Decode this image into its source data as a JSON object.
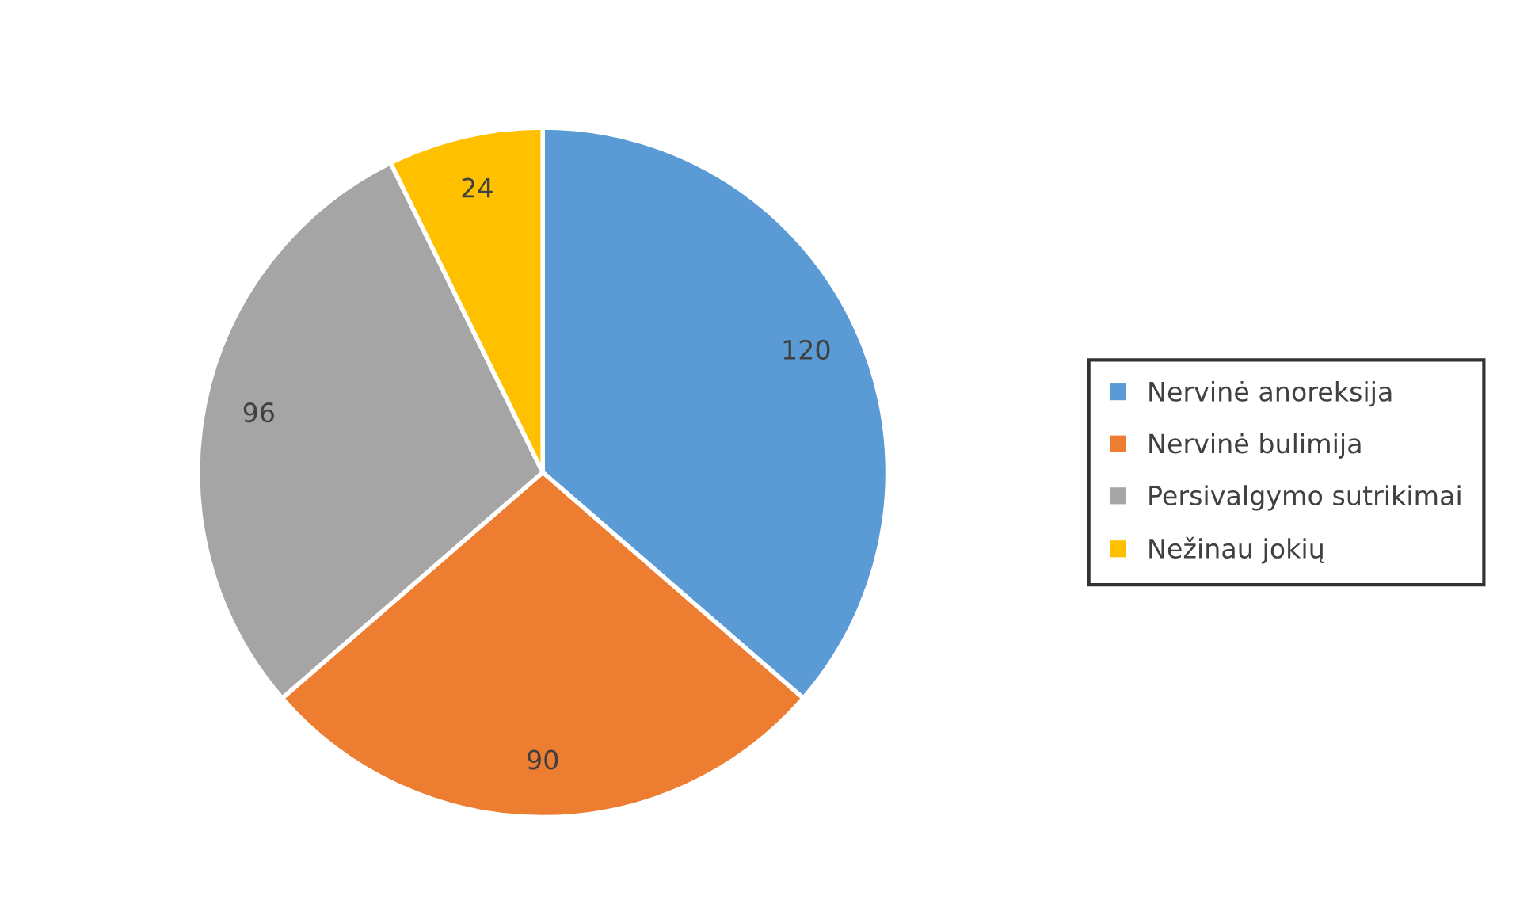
{
  "chart_data": {
    "type": "pie",
    "categories": [
      "Nervinė anoreksija",
      "Nervinė bulimija",
      "Persivalgymo sutrikimai",
      "Nežinau jokių"
    ],
    "values": [
      120,
      90,
      96,
      24
    ],
    "colors": [
      "#5b9bd5",
      "#ed7d31",
      "#a5a5a5",
      "#ffc000"
    ],
    "data_labels": true,
    "legend": "right"
  }
}
